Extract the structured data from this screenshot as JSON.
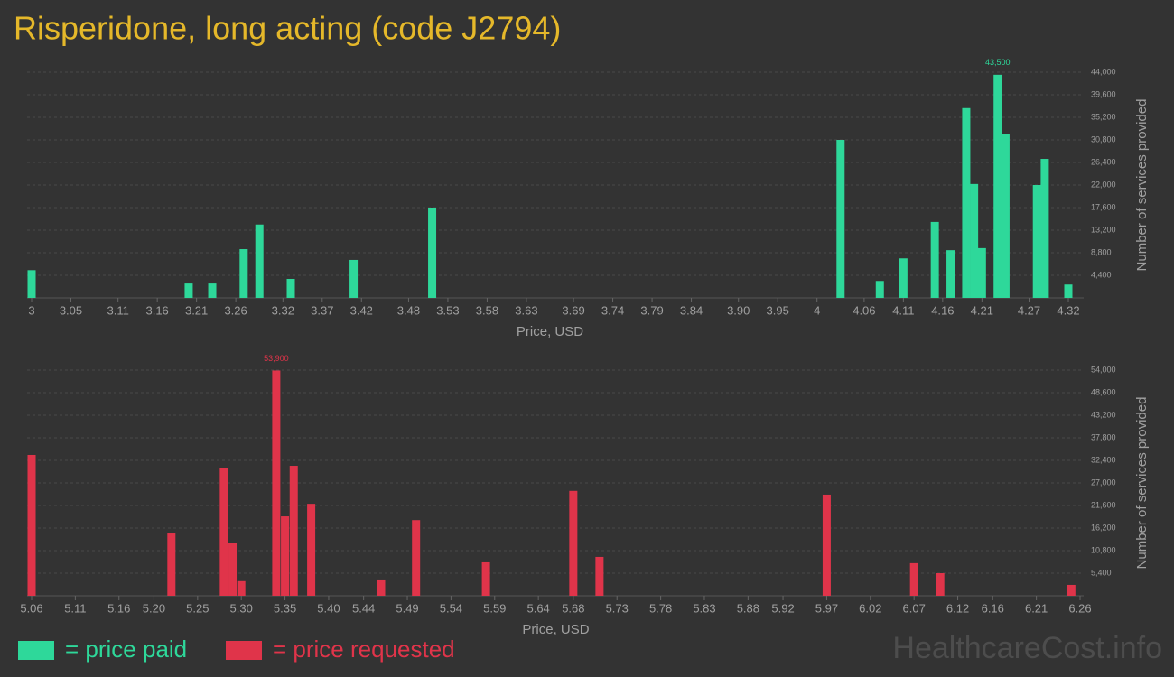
{
  "title": "Risperidone, long acting (code J2794)",
  "watermark": "HealthcareCost.info",
  "chart_data": [
    {
      "type": "bar",
      "xlabel": "Price, USD",
      "ylabel": "Number of services provided",
      "x": [
        3,
        3.2,
        3.23,
        3.27,
        3.29,
        3.33,
        3.41,
        3.51,
        4.03,
        4.08,
        4.11,
        4.15,
        4.17,
        4.19,
        4.2,
        4.21,
        4.23,
        4.24,
        4.28,
        4.29,
        4.32
      ],
      "series": [
        {
          "name": "= price paid",
          "color": "#2ed89a",
          "values": [
            5400,
            2800,
            2800,
            9500,
            14300,
            3700,
            7400,
            17600,
            30800,
            3300,
            7700,
            14800,
            9300,
            37000,
            22200,
            9700,
            43500,
            31900,
            22000,
            27100,
            2600
          ],
          "value_labels": [
            null,
            null,
            null,
            null,
            null,
            null,
            null,
            null,
            null,
            null,
            null,
            null,
            null,
            null,
            null,
            null,
            "43,500",
            null,
            null,
            null,
            null
          ]
        }
      ],
      "xlim": [
        3,
        4.32
      ],
      "ylim": [
        0,
        44000
      ],
      "xticks": [
        3,
        3.05,
        3.11,
        3.16,
        3.21,
        3.26,
        3.32,
        3.37,
        3.42,
        3.48,
        3.53,
        3.58,
        3.63,
        3.69,
        3.74,
        3.79,
        3.84,
        {
          "value": 3.9,
          "label": "3.90"
        },
        3.95,
        4,
        4.06,
        4.11,
        4.16,
        4.21,
        4.27,
        4.32
      ],
      "yticks": [
        {
          "value": 4400,
          "label": "4,400"
        },
        {
          "value": 8800,
          "label": "8,800"
        },
        {
          "value": 13200,
          "label": "13,200"
        },
        {
          "value": 17600,
          "label": "17,600"
        },
        {
          "value": 22000,
          "label": "22,000"
        },
        {
          "value": 26400,
          "label": "26,400"
        },
        {
          "value": 30800,
          "label": "30,800"
        },
        {
          "value": 35200,
          "label": "35,200"
        },
        {
          "value": 39600,
          "label": "39,600"
        },
        {
          "value": 44000,
          "label": "44,000"
        }
      ],
      "grid": true
    },
    {
      "type": "bar",
      "xlabel": "Price, USD",
      "ylabel": "Number of services provided",
      "x": [
        5.06,
        5.22,
        5.28,
        5.29,
        5.3,
        5.34,
        5.35,
        5.36,
        5.38,
        5.46,
        5.5,
        5.58,
        5.68,
        5.71,
        5.97,
        6.07,
        6.1,
        6.25
      ],
      "series": [
        {
          "name": "= price requested",
          "color": "#e0344a",
          "values": [
            33700,
            14900,
            30500,
            12700,
            3500,
            53900,
            19000,
            31100,
            22000,
            3900,
            18100,
            8000,
            25100,
            9300,
            24200,
            7800,
            5400,
            2600
          ],
          "value_labels": [
            null,
            null,
            null,
            null,
            null,
            "53,900",
            null,
            null,
            null,
            null,
            null,
            null,
            null,
            null,
            null,
            null,
            null,
            null
          ]
        }
      ],
      "xlim": [
        5.06,
        6.26
      ],
      "ylim": [
        0,
        54000
      ],
      "xticks": [
        5.06,
        5.11,
        5.16,
        {
          "value": 5.2,
          "label": "5.20"
        },
        5.25,
        {
          "value": 5.3,
          "label": "5.30"
        },
        5.35,
        {
          "value": 5.4,
          "label": "5.40"
        },
        5.44,
        5.49,
        5.54,
        5.59,
        5.64,
        5.68,
        5.73,
        5.78,
        5.83,
        5.88,
        5.92,
        5.97,
        6.02,
        6.07,
        6.12,
        6.16,
        6.21,
        6.26
      ],
      "yticks": [
        {
          "value": 5400,
          "label": "5,400"
        },
        {
          "value": 10800,
          "label": "10,800"
        },
        {
          "value": 16200,
          "label": "16,200"
        },
        {
          "value": 21600,
          "label": "21,600"
        },
        {
          "value": 27000,
          "label": "27,000"
        },
        {
          "value": 32400,
          "label": "32,400"
        },
        {
          "value": 37800,
          "label": "37,800"
        },
        {
          "value": 43200,
          "label": "43,200"
        },
        {
          "value": 48600,
          "label": "48,600"
        },
        {
          "value": 54000,
          "label": "54,000"
        }
      ],
      "grid": true
    }
  ]
}
